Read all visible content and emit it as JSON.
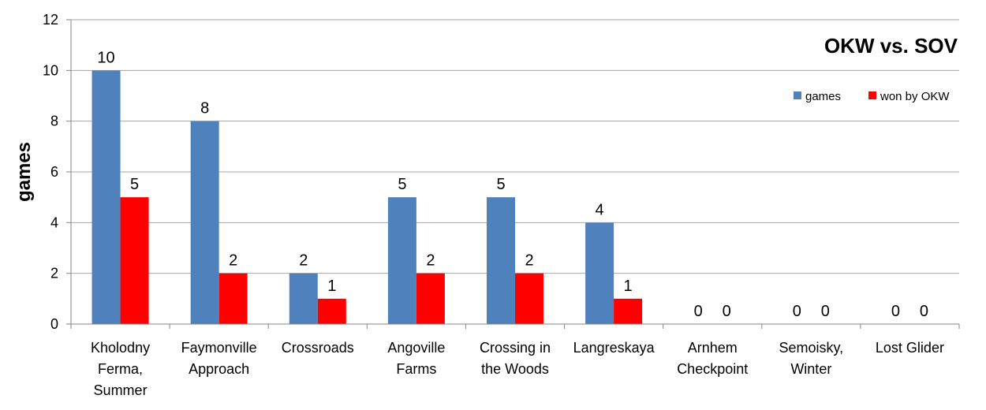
{
  "chart_data": {
    "type": "bar",
    "title": "OKW vs. SOV",
    "xlabel": "",
    "ylabel": "games",
    "ylim": [
      0,
      12
    ],
    "yticks": [
      0,
      2,
      4,
      6,
      8,
      10,
      12
    ],
    "grid": true,
    "legend_position": "top-right",
    "categories": [
      [
        "Kholodny",
        "Ferma,",
        "Summer"
      ],
      [
        "Faymonville",
        "Approach"
      ],
      [
        "Crossroads"
      ],
      [
        "Angoville",
        "Farms"
      ],
      [
        "Crossing in",
        "the Woods"
      ],
      [
        "Langreskaya"
      ],
      [
        "Arnhem",
        "Checkpoint"
      ],
      [
        "Semoisky,",
        "Winter"
      ],
      [
        "Lost Glider"
      ]
    ],
    "series": [
      {
        "name": "games",
        "color": "#4f81bd",
        "values": [
          10,
          8,
          2,
          5,
          5,
          4,
          0,
          0,
          0
        ]
      },
      {
        "name": "won by OKW",
        "color": "#ff0000",
        "values": [
          5,
          2,
          1,
          2,
          2,
          1,
          0,
          0,
          0
        ]
      }
    ]
  }
}
